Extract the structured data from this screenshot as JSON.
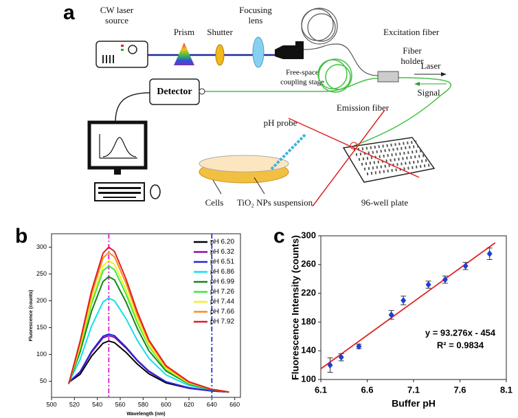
{
  "diagram": {
    "panel": "a",
    "laser_source": [
      "CW laser",
      "source"
    ],
    "prism": "Prism",
    "shutter": "Shutter",
    "lens": [
      "Focusing",
      "lens"
    ],
    "coupling_stage": [
      "Free-space",
      "coupling stage"
    ],
    "excitation_fiber": "Excitation fiber",
    "fiber_holder": [
      "Fiber",
      "holder"
    ],
    "laser": "Laser",
    "signal": "Signal",
    "detector": "Detector",
    "emission_fiber": "Emission fiber",
    "probe": "pH probe",
    "cells": "Cells",
    "suspension": "TiO₂ NPs suspension",
    "plate": "96-well plate"
  },
  "chart_data": [
    {
      "type": "line",
      "panel": "b",
      "x_label": "Wavelength (nm)",
      "y_label": "Fluorescence (counts)",
      "x": [
        515,
        525,
        535,
        545,
        550,
        555,
        565,
        575,
        585,
        600,
        620,
        640,
        655
      ],
      "series": [
        {
          "name": "pH 6.20",
          "color": "#000000",
          "values": [
            48,
            63,
            97,
            121,
            125,
            122,
            104,
            82,
            64,
            47,
            37,
            32,
            30
          ]
        },
        {
          "name": "pH 6.32",
          "color": "#8a10a8",
          "values": [
            48,
            67,
            104,
            131,
            135,
            132,
            112,
            88,
            68,
            49,
            37,
            32,
            30
          ]
        },
        {
          "name": "pH 6.51",
          "color": "#2424d8",
          "values": [
            48,
            68,
            106,
            134,
            138,
            135,
            114,
            89,
            69,
            49,
            38,
            32,
            30
          ]
        },
        {
          "name": "pH 6.86",
          "color": "#10e0e8",
          "values": [
            47,
            91,
            153,
            198,
            205,
            200,
            167,
            126,
            93,
            62,
            42,
            34,
            30
          ]
        },
        {
          "name": "pH 6.99",
          "color": "#148414",
          "values": [
            46,
            105,
            181,
            236,
            245,
            239,
            198,
            148,
            107,
            69,
            45,
            34,
            30
          ]
        },
        {
          "name": "pH 7.26",
          "color": "#3ee83e",
          "values": [
            46,
            112,
            195,
            256,
            265,
            258,
            213,
            159,
            115,
            72,
            46,
            35,
            30
          ]
        },
        {
          "name": "pH 7.44",
          "color": "#f4f024",
          "values": [
            45,
            116,
            202,
            265,
            275,
            268,
            221,
            165,
            118,
            74,
            47,
            35,
            30
          ]
        },
        {
          "name": "pH 7.66",
          "color": "#f09020",
          "values": [
            45,
            121,
            212,
            280,
            290,
            282,
            233,
            173,
            124,
            77,
            48,
            35,
            30
          ]
        },
        {
          "name": "pH 7.92",
          "color": "#e41c1c",
          "values": [
            45,
            125,
            219,
            289,
            300,
            292,
            241,
            179,
            127,
            79,
            49,
            35,
            30
          ]
        }
      ],
      "vlines": [
        {
          "x": 550,
          "color": "#d81cc8"
        },
        {
          "x": 640,
          "color": "#2030d0"
        }
      ],
      "xlim": [
        500,
        665
      ],
      "ylim": [
        20,
        325
      ],
      "xticks": [
        500,
        520,
        540,
        560,
        580,
        600,
        620,
        640,
        660
      ],
      "yticks": [
        50,
        100,
        150,
        200,
        250,
        300
      ]
    },
    {
      "type": "scatter",
      "panel": "c",
      "x_label": "Buffer pH",
      "y_label": "Fluorescence Intensity (counts)",
      "x": [
        6.2,
        6.32,
        6.51,
        6.86,
        6.99,
        7.26,
        7.44,
        7.66,
        7.92
      ],
      "values": [
        120,
        131,
        146,
        190,
        210,
        232,
        239,
        258,
        275
      ],
      "errors": [
        10,
        5,
        3,
        6,
        6,
        5,
        5,
        5,
        8
      ],
      "color": "#1f3fd0",
      "fit": {
        "slope": 93.276,
        "intercept": -454,
        "x": [
          6.1,
          7.98
        ],
        "color": "#e02020"
      },
      "annotation": [
        "y = 93.276x - 454",
        "R² = 0.9834"
      ],
      "xlim": [
        6.1,
        8.1
      ],
      "ylim": [
        100,
        300
      ],
      "xticks": [
        6.1,
        6.6,
        7.1,
        7.6,
        8.1
      ],
      "yticks": [
        100,
        140,
        180,
        220,
        260,
        300
      ]
    }
  ]
}
